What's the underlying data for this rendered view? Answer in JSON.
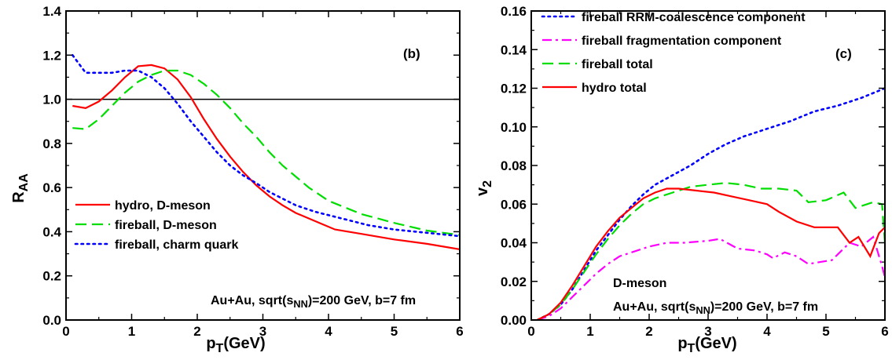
{
  "chart_data": [
    {
      "type": "line",
      "panel_label": "(b)",
      "xlabel": {
        "main": "p",
        "sub": "T",
        "tail": "(GeV)"
      },
      "ylabel": {
        "main": "R",
        "sub": "AA"
      },
      "xlim": [
        0,
        6
      ],
      "ylim": [
        0,
        1.4
      ],
      "xticks": [
        0,
        1,
        2,
        3,
        4,
        5,
        6
      ],
      "yticks": [
        0.0,
        0.2,
        0.4,
        0.6,
        0.8,
        1.0,
        1.2,
        1.4
      ],
      "xtick_labels": [
        "0",
        "1",
        "2",
        "3",
        "4",
        "5",
        "6"
      ],
      "ytick_labels": [
        "0.0",
        "0.2",
        "0.4",
        "0.6",
        "0.8",
        "1.0",
        "1.2",
        "1.4"
      ],
      "reference_line": {
        "y": 1.0,
        "color": "#000000"
      },
      "legend_position": "bottom-left",
      "annotation": {
        "pre": "Au+Au, sqrt(s",
        "sub": "NN",
        "post": ")=200 GeV, b=7 fm"
      },
      "series": [
        {
          "name": "hydro, D-meson",
          "style": "solid",
          "color": "#ff0000",
          "points": [
            [
              0.1,
              0.97
            ],
            [
              0.3,
              0.96
            ],
            [
              0.5,
              0.99
            ],
            [
              0.7,
              1.04
            ],
            [
              0.9,
              1.1
            ],
            [
              1.1,
              1.15
            ],
            [
              1.3,
              1.155
            ],
            [
              1.5,
              1.14
            ],
            [
              1.7,
              1.09
            ],
            [
              1.9,
              1.01
            ],
            [
              2.1,
              0.91
            ],
            [
              2.3,
              0.82
            ],
            [
              2.5,
              0.74
            ],
            [
              2.7,
              0.67
            ],
            [
              2.9,
              0.61
            ],
            [
              3.1,
              0.56
            ],
            [
              3.3,
              0.52
            ],
            [
              3.5,
              0.485
            ],
            [
              3.7,
              0.46
            ],
            [
              3.9,
              0.435
            ],
            [
              4.1,
              0.41
            ],
            [
              4.5,
              0.39
            ],
            [
              5.0,
              0.365
            ],
            [
              5.5,
              0.345
            ],
            [
              6.0,
              0.32
            ]
          ]
        },
        {
          "name": "fireball, D-meson",
          "style": "dashed",
          "color": "#00dd00",
          "points": [
            [
              0.1,
              0.87
            ],
            [
              0.3,
              0.865
            ],
            [
              0.5,
              0.91
            ],
            [
              0.7,
              0.97
            ],
            [
              0.9,
              1.03
            ],
            [
              1.1,
              1.08
            ],
            [
              1.3,
              1.11
            ],
            [
              1.5,
              1.13
            ],
            [
              1.7,
              1.13
            ],
            [
              1.9,
              1.11
            ],
            [
              2.1,
              1.07
            ],
            [
              2.3,
              1.02
            ],
            [
              2.5,
              0.96
            ],
            [
              2.7,
              0.89
            ],
            [
              2.9,
              0.83
            ],
            [
              3.1,
              0.76
            ],
            [
              3.3,
              0.7
            ],
            [
              3.5,
              0.65
            ],
            [
              3.7,
              0.6
            ],
            [
              4.0,
              0.54
            ],
            [
              4.5,
              0.48
            ],
            [
              5.0,
              0.44
            ],
            [
              5.5,
              0.405
            ],
            [
              6.0,
              0.385
            ]
          ]
        },
        {
          "name": "fireball, charm quark",
          "style": "dotted",
          "color": "#0000ff",
          "points": [
            [
              0.1,
              1.2
            ],
            [
              0.3,
              1.12
            ],
            [
              0.5,
              1.12
            ],
            [
              0.7,
              1.12
            ],
            [
              0.9,
              1.13
            ],
            [
              1.1,
              1.13
            ],
            [
              1.3,
              1.1
            ],
            [
              1.5,
              1.05
            ],
            [
              1.7,
              0.98
            ],
            [
              1.9,
              0.9
            ],
            [
              2.1,
              0.83
            ],
            [
              2.3,
              0.76
            ],
            [
              2.5,
              0.7
            ],
            [
              2.7,
              0.655
            ],
            [
              2.9,
              0.62
            ],
            [
              3.1,
              0.58
            ],
            [
              3.3,
              0.55
            ],
            [
              3.5,
              0.52
            ],
            [
              3.8,
              0.49
            ],
            [
              4.2,
              0.46
            ],
            [
              4.6,
              0.43
            ],
            [
              5.0,
              0.41
            ],
            [
              5.5,
              0.395
            ],
            [
              6.0,
              0.38
            ]
          ]
        }
      ]
    },
    {
      "type": "line",
      "panel_label": "(c)",
      "xlabel": {
        "main": "p",
        "sub": "T",
        "tail": "(GeV)"
      },
      "ylabel": {
        "main": "v",
        "sub": "2"
      },
      "xlim": [
        0,
        6
      ],
      "ylim": [
        0,
        0.16
      ],
      "xticks": [
        0,
        1,
        2,
        3,
        4,
        5,
        6
      ],
      "yticks": [
        0.0,
        0.02,
        0.04,
        0.06,
        0.08,
        0.1,
        0.12,
        0.14,
        0.16
      ],
      "xtick_labels": [
        "0",
        "1",
        "2",
        "3",
        "4",
        "5",
        "6"
      ],
      "ytick_labels": [
        "0.00",
        "0.02",
        "0.04",
        "0.06",
        "0.08",
        "0.10",
        "0.12",
        "0.14",
        "0.16"
      ],
      "legend_position": "top-left",
      "annotation_line1": "D-meson",
      "annotation": {
        "pre": "Au+Au, sqrt(s",
        "sub": "NN",
        "post": ")=200 GeV, b=7 fm"
      },
      "series": [
        {
          "name": "fireball RRM-coalescence component",
          "style": "dotted",
          "color": "#0000ff",
          "points": [
            [
              0.1,
              0.0
            ],
            [
              0.3,
              0.003
            ],
            [
              0.5,
              0.008
            ],
            [
              0.7,
              0.016
            ],
            [
              0.9,
              0.026
            ],
            [
              1.1,
              0.036
            ],
            [
              1.3,
              0.044
            ],
            [
              1.5,
              0.052
            ],
            [
              1.7,
              0.059
            ],
            [
              1.9,
              0.065
            ],
            [
              2.1,
              0.07
            ],
            [
              2.4,
              0.075
            ],
            [
              2.7,
              0.08
            ],
            [
              3.0,
              0.086
            ],
            [
              3.3,
              0.091
            ],
            [
              3.6,
              0.095
            ],
            [
              4.0,
              0.099
            ],
            [
              4.4,
              0.103
            ],
            [
              4.8,
              0.108
            ],
            [
              5.2,
              0.111
            ],
            [
              5.6,
              0.115
            ],
            [
              6.0,
              0.12
            ]
          ]
        },
        {
          "name": "fireball fragmentation component",
          "style": "dashdot",
          "color": "#ff00ff",
          "points": [
            [
              0.1,
              0.0
            ],
            [
              0.3,
              0.002
            ],
            [
              0.5,
              0.006
            ],
            [
              0.7,
              0.012
            ],
            [
              0.9,
              0.018
            ],
            [
              1.1,
              0.024
            ],
            [
              1.3,
              0.029
            ],
            [
              1.5,
              0.033
            ],
            [
              1.7,
              0.035
            ],
            [
              2.0,
              0.038
            ],
            [
              2.3,
              0.04
            ],
            [
              2.6,
              0.04
            ],
            [
              3.0,
              0.041
            ],
            [
              3.2,
              0.042
            ],
            [
              3.5,
              0.037
            ],
            [
              3.8,
              0.036
            ],
            [
              4.0,
              0.034
            ],
            [
              4.1,
              0.032
            ],
            [
              4.3,
              0.035
            ],
            [
              4.5,
              0.033
            ],
            [
              4.7,
              0.029
            ],
            [
              4.9,
              0.03
            ],
            [
              5.1,
              0.031
            ],
            [
              5.4,
              0.04
            ],
            [
              5.6,
              0.038
            ],
            [
              5.8,
              0.043
            ],
            [
              5.95,
              0.028
            ],
            [
              6.0,
              0.022
            ]
          ]
        },
        {
          "name": "fireball total",
          "style": "dashed",
          "color": "#00dd00",
          "points": [
            [
              0.1,
              0.0
            ],
            [
              0.3,
              0.003
            ],
            [
              0.5,
              0.008
            ],
            [
              0.7,
              0.016
            ],
            [
              0.9,
              0.025
            ],
            [
              1.1,
              0.034
            ],
            [
              1.3,
              0.042
            ],
            [
              1.5,
              0.049
            ],
            [
              1.7,
              0.055
            ],
            [
              1.9,
              0.06
            ],
            [
              2.1,
              0.063
            ],
            [
              2.4,
              0.066
            ],
            [
              2.7,
              0.069
            ],
            [
              3.0,
              0.07
            ],
            [
              3.3,
              0.071
            ],
            [
              3.6,
              0.07
            ],
            [
              3.9,
              0.068
            ],
            [
              4.2,
              0.068
            ],
            [
              4.5,
              0.067
            ],
            [
              4.7,
              0.061
            ],
            [
              5.0,
              0.062
            ],
            [
              5.3,
              0.066
            ],
            [
              5.5,
              0.058
            ],
            [
              5.8,
              0.061
            ],
            [
              5.95,
              0.06
            ],
            [
              6.0,
              0.04
            ]
          ]
        },
        {
          "name": "hydro total",
          "style": "solid",
          "color": "#ff0000",
          "points": [
            [
              0.1,
              0.0
            ],
            [
              0.3,
              0.003
            ],
            [
              0.5,
              0.009
            ],
            [
              0.7,
              0.018
            ],
            [
              0.9,
              0.028
            ],
            [
              1.1,
              0.038
            ],
            [
              1.3,
              0.046
            ],
            [
              1.5,
              0.053
            ],
            [
              1.7,
              0.058
            ],
            [
              1.9,
              0.063
            ],
            [
              2.1,
              0.066
            ],
            [
              2.3,
              0.068
            ],
            [
              2.5,
              0.068
            ],
            [
              2.8,
              0.067
            ],
            [
              3.1,
              0.066
            ],
            [
              3.4,
              0.064
            ],
            [
              3.7,
              0.062
            ],
            [
              4.0,
              0.06
            ],
            [
              4.2,
              0.056
            ],
            [
              4.5,
              0.051
            ],
            [
              4.8,
              0.048
            ],
            [
              5.2,
              0.048
            ],
            [
              5.4,
              0.04
            ],
            [
              5.55,
              0.043
            ],
            [
              5.75,
              0.033
            ],
            [
              5.9,
              0.045
            ],
            [
              6.0,
              0.048
            ]
          ]
        }
      ]
    }
  ]
}
